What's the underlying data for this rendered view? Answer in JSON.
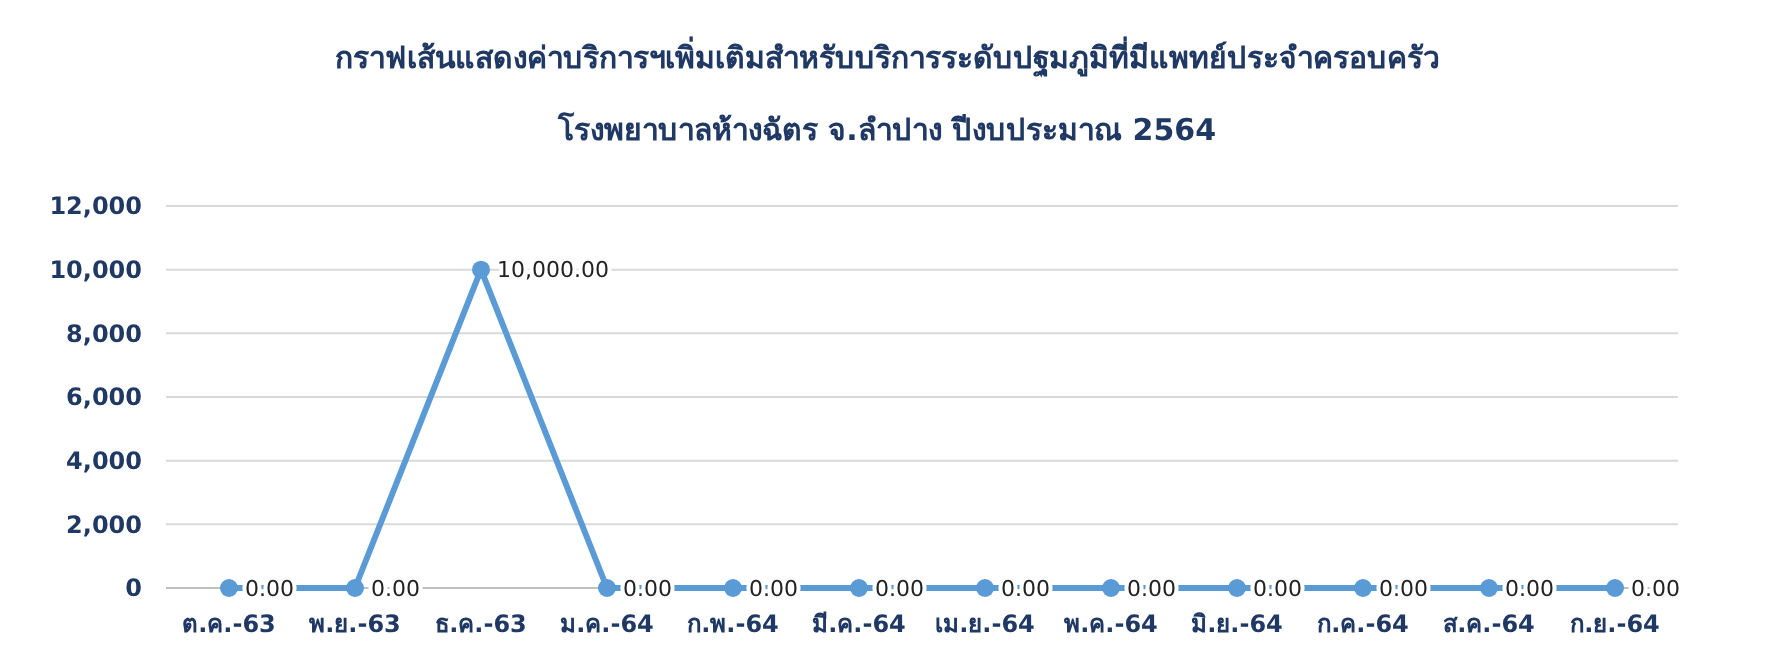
{
  "chart_data": {
    "type": "line",
    "title": "กราฟเส้นแสดงค่าบริการฯเพิ่มเติมสำหรับบริการระดับปฐมภูมิที่มีแพทย์ประจำครอบครัว",
    "subtitle": "โรงพยาบาลห้างฉัตร จ.ลำปาง ปีงบประมาณ 2564",
    "categories": [
      "ต.ค.-63",
      "พ.ย.-63",
      "ธ.ค.-63",
      "ม.ค.-64",
      "ก.พ.-64",
      "มี.ค.-64",
      "เม.ย.-64",
      "พ.ค.-64",
      "มิ.ย.-64",
      "ก.ค.-64",
      "ส.ค.-64",
      "ก.ย.-64"
    ],
    "values": [
      0,
      0,
      10000,
      0,
      0,
      0,
      0,
      0,
      0,
      0,
      0,
      0
    ],
    "value_labels": [
      "0.00",
      "0.00",
      "10,000.00",
      "0.00",
      "0.00",
      "0.00",
      "0.00",
      "0.00",
      "0.00",
      "0.00",
      "0.00",
      "0.00"
    ],
    "color": "#5b9bd5",
    "ylim": [
      0,
      12000
    ],
    "yticks": [
      {
        "value": 0,
        "label": "0"
      },
      {
        "value": 2000,
        "label": "2,000"
      },
      {
        "value": 4000,
        "label": "4,000"
      },
      {
        "value": 6000,
        "label": "6,000"
      },
      {
        "value": 8000,
        "label": "8,000"
      },
      {
        "value": 10000,
        "label": "10,000"
      },
      {
        "value": 12000,
        "label": "12,000"
      }
    ],
    "grid": "y",
    "marker": "circle"
  }
}
